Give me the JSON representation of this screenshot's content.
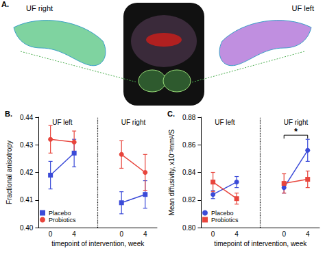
{
  "panel_a": {
    "label": "A.",
    "texts": [
      "UF right",
      "UF left"
    ]
  },
  "chart_data": [
    {
      "type": "line",
      "panel": "B.",
      "categories": [
        "0",
        "4",
        null,
        "0",
        "4"
      ],
      "groups": [
        "UF left",
        "UF right"
      ],
      "x_label": "timepoint of intervention, week",
      "y_label": "Fractional anisotropy",
      "ylim": [
        0.4,
        0.44
      ],
      "yticks": [
        {
          "value": 0.4,
          "label": "0.40"
        },
        0.41,
        0.42,
        0.43,
        0.44
      ],
      "grid": false,
      "legend": "lower left",
      "series": [
        {
          "name": "Placebo",
          "color": "#3b4bd8",
          "marker": "square",
          "values": [
            0.419,
            0.427,
            null,
            0.409,
            0.412
          ],
          "errors": [
            0.005,
            0.005,
            null,
            0.004,
            0.005
          ]
        },
        {
          "name": "Probiotics",
          "color": "#e8453c",
          "marker": "circle",
          "values": [
            0.432,
            0.431,
            null,
            0.4265,
            0.42
          ],
          "errors": [
            0.005,
            0.004,
            null,
            0.005,
            0.0065
          ]
        }
      ]
    },
    {
      "type": "line",
      "panel": "C.",
      "categories": [
        "0",
        "4",
        null,
        "0",
        "4"
      ],
      "groups": [
        "UF left",
        "UF right"
      ],
      "x_label": "timepoint of intervention, week",
      "y_label": "Mean diffusivity, x10⁻³mm²/S",
      "ylim": [
        0.8,
        0.88
      ],
      "yticks": [
        {
          "value": 0.8,
          "label": "0.80"
        },
        0.82,
        0.84,
        0.86,
        0.88
      ],
      "grid": false,
      "legend": "lower left",
      "annotations": [
        {
          "text": "*",
          "group": "UF right"
        }
      ],
      "series": [
        {
          "name": "Placebo",
          "color": "#3b4bd8",
          "marker": "circle",
          "values": [
            0.824,
            0.833,
            null,
            0.829,
            0.856
          ],
          "errors": [
            0.003,
            0.004,
            null,
            0.004,
            0.008
          ]
        },
        {
          "name": "Probiotics",
          "color": "#e8453c",
          "marker": "square",
          "values": [
            0.833,
            0.821,
            null,
            0.832,
            0.835
          ],
          "errors": [
            0.007,
            0.004,
            null,
            0.007,
            0.006
          ]
        }
      ]
    }
  ]
}
